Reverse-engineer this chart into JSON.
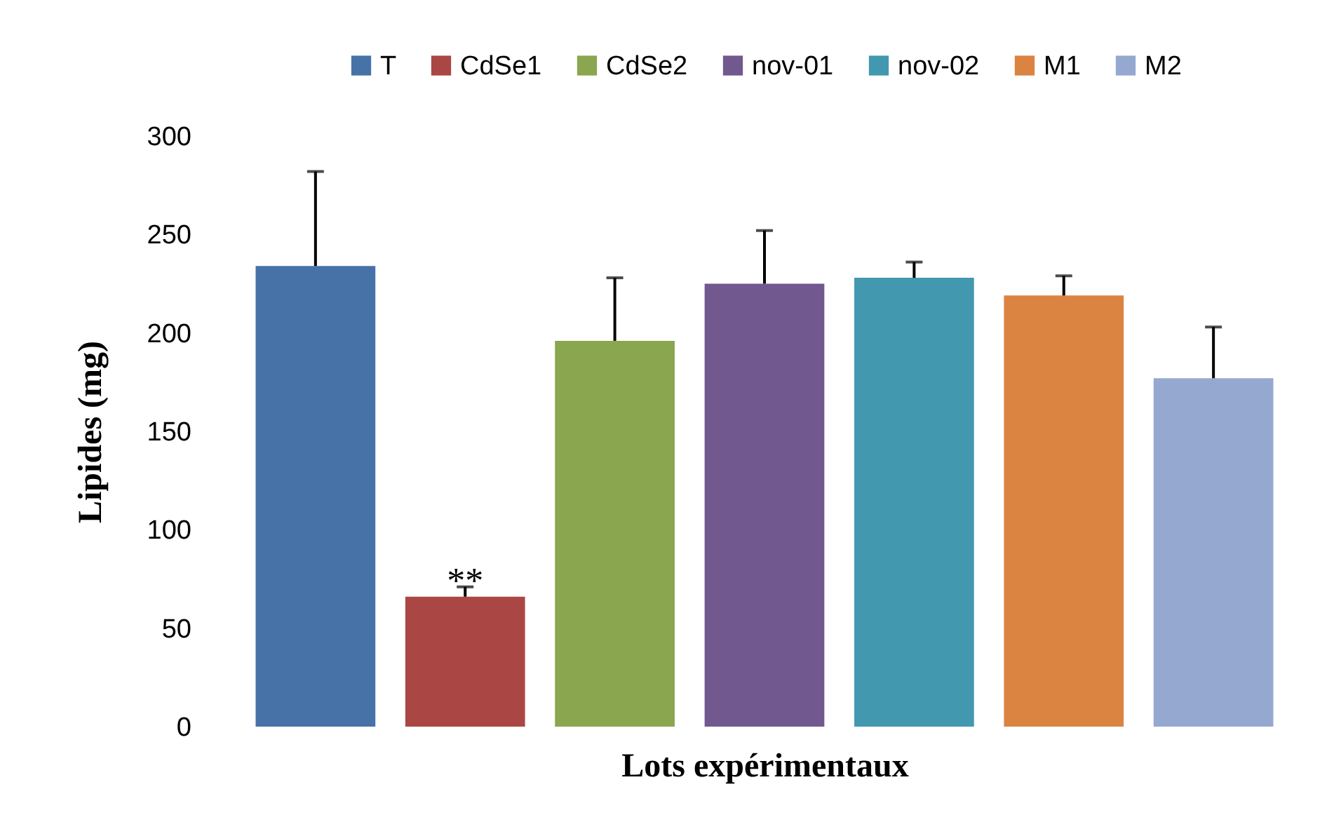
{
  "chart_data": {
    "type": "bar",
    "xlabel": "Lots expérimentaux",
    "ylabel": "Lipides (mg)",
    "categories": [
      null
    ],
    "series": [
      {
        "name": "T",
        "color": "#4672a8",
        "values": [
          234
        ],
        "errors": [
          [
            234,
            282
          ]
        ]
      },
      {
        "name": "CdSe1",
        "color": "#aa4744",
        "values": [
          66
        ],
        "errors": [
          [
            66,
            71
          ]
        ]
      },
      {
        "name": "CdSe2",
        "color": "#8aa64e",
        "values": [
          196
        ],
        "errors": [
          [
            196,
            228
          ]
        ]
      },
      {
        "name": "nov-01",
        "color": "#71588f",
        "values": [
          225
        ],
        "errors": [
          [
            225,
            252
          ]
        ]
      },
      {
        "name": "nov-02",
        "color": "#4298af",
        "values": [
          228
        ],
        "errors": [
          [
            228,
            236
          ]
        ]
      },
      {
        "name": "M1",
        "color": "#db8340",
        "values": [
          219
        ],
        "errors": [
          [
            219,
            229
          ]
        ]
      },
      {
        "name": "M2",
        "color": "#95a9d0",
        "values": [
          177
        ],
        "errors": [
          [
            177,
            203
          ]
        ]
      }
    ],
    "annotations": [
      {
        "text": "**",
        "y": 73
      }
    ],
    "ylim": [
      0,
      300
    ],
    "yticks": [
      0,
      50,
      100,
      150,
      200,
      250,
      300
    ],
    "legend": "top",
    "grid": false
  }
}
